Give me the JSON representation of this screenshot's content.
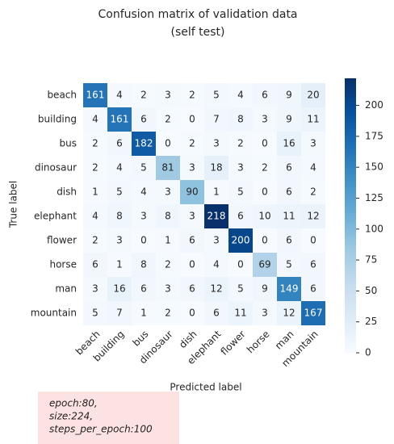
{
  "chart_data": {
    "type": "heatmap",
    "title": "Confusion matrix of validation data",
    "subtitle": "(self test)",
    "x_label": "Predicted label",
    "y_label": "True label",
    "x_categories": [
      "beach",
      "building",
      "bus",
      "dinosaur",
      "dish",
      "elephant",
      "flower",
      "horse",
      "man",
      "mountain"
    ],
    "y_categories": [
      "beach",
      "building",
      "bus",
      "dinosaur",
      "dish",
      "elephant",
      "flower",
      "horse",
      "man",
      "mountain"
    ],
    "values": [
      [
        161,
        4,
        2,
        3,
        2,
        5,
        4,
        6,
        9,
        20
      ],
      [
        4,
        161,
        6,
        2,
        0,
        7,
        8,
        3,
        9,
        11
      ],
      [
        2,
        6,
        182,
        0,
        2,
        3,
        2,
        0,
        16,
        3
      ],
      [
        2,
        4,
        5,
        81,
        3,
        18,
        3,
        2,
        6,
        4
      ],
      [
        1,
        5,
        4,
        3,
        90,
        1,
        5,
        0,
        6,
        2
      ],
      [
        4,
        8,
        3,
        8,
        3,
        218,
        6,
        10,
        11,
        12
      ],
      [
        2,
        3,
        0,
        1,
        6,
        3,
        200,
        0,
        6,
        0
      ],
      [
        6,
        1,
        8,
        2,
        0,
        4,
        0,
        69,
        5,
        6
      ],
      [
        3,
        16,
        6,
        3,
        6,
        12,
        5,
        9,
        149,
        6
      ],
      [
        5,
        7,
        1,
        2,
        0,
        6,
        11,
        3,
        12,
        167
      ]
    ],
    "colors": [
      "#f7fbff",
      "#deebf7",
      "#c6dbef",
      "#9ecae1",
      "#6baed6",
      "#4292c6",
      "#2171b5",
      "#08519c",
      "#08306b"
    ],
    "clim": [
      0,
      218
    ],
    "cticks": [
      0,
      25,
      50,
      75,
      100,
      125,
      150,
      175,
      200
    ],
    "annotation": [
      "epoch:80,",
      "size:224,",
      "steps_per_epoch:100"
    ]
  }
}
